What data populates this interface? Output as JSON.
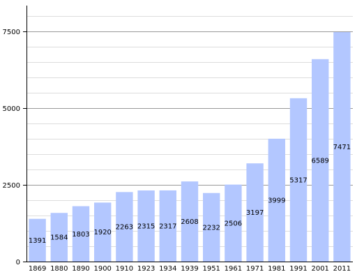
{
  "chart_data": {
    "type": "bar",
    "title": "",
    "xlabel": "",
    "ylabel": "",
    "categories": [
      "1869",
      "1880",
      "1890",
      "1900",
      "1910",
      "1923",
      "1934",
      "1939",
      "1951",
      "1961",
      "1971",
      "1981",
      "1991",
      "2001",
      "2011"
    ],
    "values": [
      1391,
      1584,
      1803,
      1920,
      2263,
      2315,
      2317,
      2608,
      2232,
      2506,
      3197,
      3999,
      5317,
      6589,
      7471
    ],
    "ylim": [
      0,
      8333
    ],
    "yticks": [
      0,
      2500,
      5000,
      7500
    ],
    "minor_grid_step": 500,
    "grid": true,
    "legend": "none",
    "data_labels": true,
    "colors": {
      "bar": "#b3c7ff",
      "major_grid": "#999999",
      "minor_grid": "#dddddd",
      "axis": "#000000"
    }
  }
}
